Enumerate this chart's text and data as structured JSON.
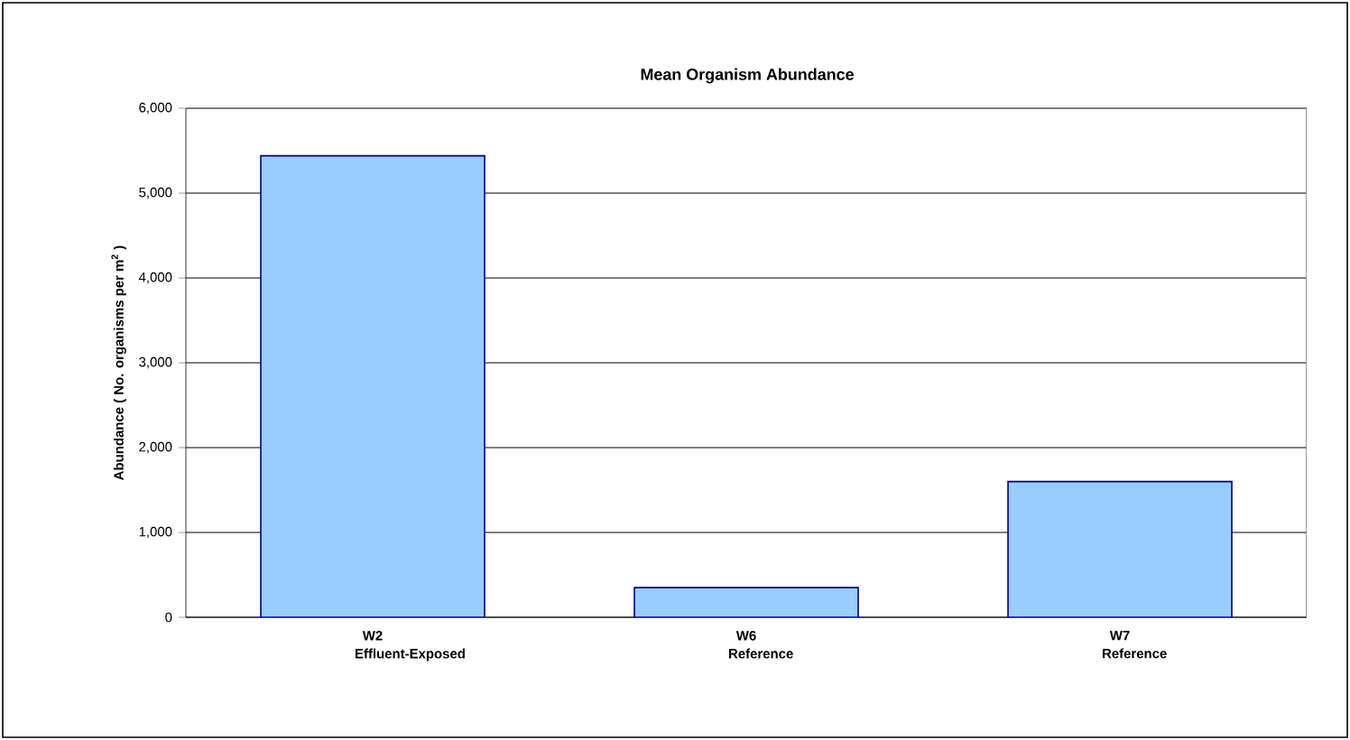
{
  "chart_data": {
    "type": "bar",
    "title": "Mean Organism Abundance",
    "ylabel": "Abundance ( No. organisms per m$^{2}$ )",
    "categories": [
      "W2 Effluent-Exposed",
      "W6 Reference",
      "W7 Reference"
    ],
    "values": [
      5440,
      350,
      1600
    ],
    "color": "#99ccff",
    "ylim": [
      0,
      6000
    ],
    "yticks": [
      {
        "value": 0,
        "label": "0"
      },
      {
        "value": 1000,
        "label": "1,000"
      },
      {
        "value": 2000,
        "label": "2,000"
      },
      {
        "value": 3000,
        "label": "3,000"
      },
      {
        "value": 4000,
        "label": "4,000"
      },
      {
        "value": 5000,
        "label": "5,000"
      },
      {
        "value": 6000,
        "label": "6,000"
      }
    ],
    "grid": "y"
  }
}
